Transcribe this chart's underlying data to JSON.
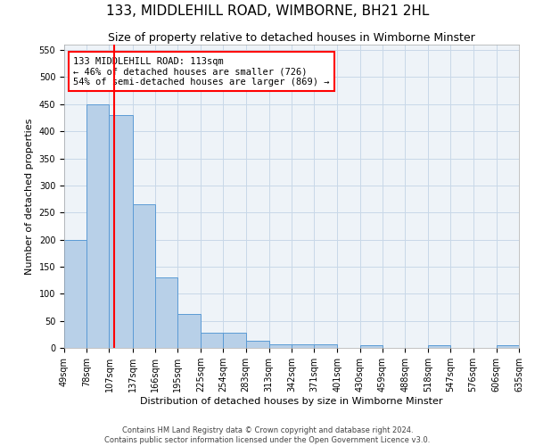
{
  "title": "133, MIDDLEHILL ROAD, WIMBORNE, BH21 2HL",
  "subtitle": "Size of property relative to detached houses in Wimborne Minster",
  "xlabel": "Distribution of detached houses by size in Wimborne Minster",
  "ylabel": "Number of detached properties",
  "footer_line1": "Contains HM Land Registry data © Crown copyright and database right 2024.",
  "footer_line2": "Contains public sector information licensed under the Open Government Licence v3.0.",
  "annotation_line1": "133 MIDDLEHILL ROAD: 113sqm",
  "annotation_line2": "← 46% of detached houses are smaller (726)",
  "annotation_line3": "54% of semi-detached houses are larger (869) →",
  "bar_color": "#b8d0e8",
  "bar_edge_color": "#5b9bd5",
  "grid_color": "#c8d8e8",
  "bg_color": "#eef3f8",
  "red_line_x": 113,
  "bin_edges": [
    49,
    78,
    107,
    137,
    166,
    195,
    225,
    254,
    283,
    313,
    342,
    371,
    401,
    430,
    459,
    488,
    518,
    547,
    576,
    606,
    635
  ],
  "bar_heights": [
    200,
    450,
    430,
    265,
    130,
    62,
    28,
    28,
    13,
    7,
    7,
    7,
    0,
    5,
    0,
    0,
    5,
    0,
    0,
    5
  ],
  "ylim": [
    0,
    560
  ],
  "yticks": [
    0,
    50,
    100,
    150,
    200,
    250,
    300,
    350,
    400,
    450,
    500,
    550
  ],
  "title_fontsize": 11,
  "subtitle_fontsize": 9,
  "axis_label_fontsize": 8,
  "tick_fontsize": 7,
  "annotation_fontsize": 7.5,
  "footer_fontsize": 6
}
